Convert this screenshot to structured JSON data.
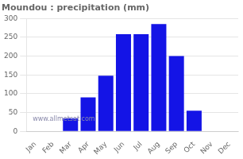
{
  "chart_data": {
    "type": "bar",
    "title": "Moundou : precipitation (mm)",
    "categories": [
      "Jan",
      "Feb",
      "Mar",
      "Apr",
      "May",
      "Jun",
      "Jul",
      "Aug",
      "Sep",
      "Oct",
      "Nov",
      "Dec"
    ],
    "values": [
      0,
      0,
      35,
      90,
      148,
      258,
      258,
      285,
      200,
      55,
      0,
      0
    ],
    "color": "#1414e6",
    "ylim": [
      0,
      300
    ],
    "yticks": [
      0,
      50,
      100,
      150,
      200,
      250,
      300
    ],
    "grid": true,
    "annotations": [
      "www.allmetsat.com"
    ]
  }
}
